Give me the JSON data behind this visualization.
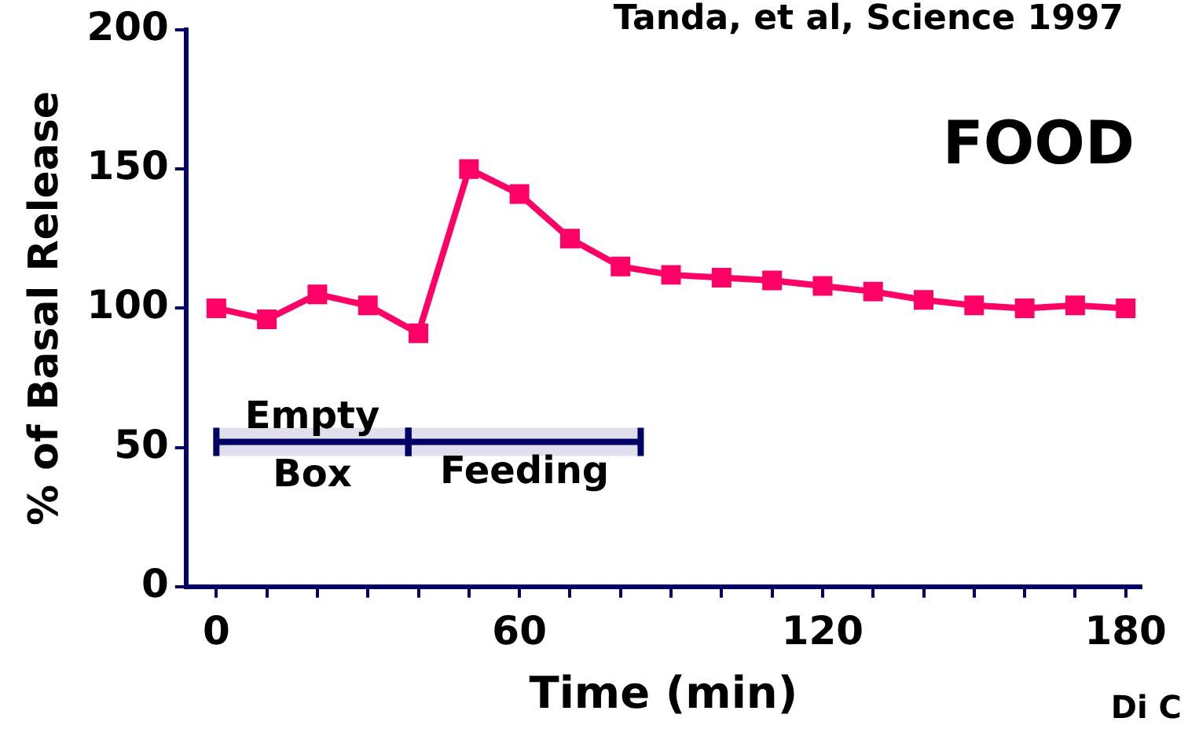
{
  "chart_data": {
    "type": "line",
    "xlabel": "Time (min)",
    "ylabel": "% of Basal Release",
    "x": [
      0,
      10,
      20,
      30,
      40,
      50,
      60,
      70,
      80,
      90,
      100,
      110,
      120,
      130,
      140,
      150,
      160,
      170,
      180
    ],
    "series": [
      {
        "color": "#ff0066",
        "values": [
          100,
          96,
          105,
          101,
          91,
          150,
          141,
          125,
          115,
          112,
          111,
          110,
          108,
          106,
          103,
          101,
          100,
          101,
          100
        ]
      }
    ],
    "xlim": [
      -6,
      183
    ],
    "xticks": [
      0,
      {
        "value": 10,
        "label": null
      },
      {
        "value": 20,
        "label": null
      },
      {
        "value": 30,
        "label": null
      },
      {
        "value": 40,
        "label": null
      },
      {
        "value": 50,
        "label": null
      },
      60,
      {
        "value": 70,
        "label": null
      },
      {
        "value": 80,
        "label": null
      },
      {
        "value": 90,
        "label": null
      },
      {
        "value": 100,
        "label": null
      },
      {
        "value": 110,
        "label": null
      },
      120,
      {
        "value": 130,
        "label": null
      },
      {
        "value": 140,
        "label": null
      },
      {
        "value": 150,
        "label": null
      },
      {
        "value": 160,
        "label": null
      },
      {
        "value": 170,
        "label": null
      },
      180
    ],
    "ylim": [
      0,
      200
    ],
    "yticks": [
      0,
      50,
      100,
      150,
      200
    ],
    "grid": false,
    "legend": false,
    "marker": "square",
    "line_style": "solid",
    "bands": [
      {
        "axis": "x",
        "from": 0,
        "to": 38,
        "label": "Empty Box",
        "color": "#000066"
      },
      {
        "axis": "x",
        "from": 38,
        "to": 84,
        "label": "Feeding",
        "color": "#000066"
      }
    ],
    "annotations": [
      "Tanda, et al, Science 1997",
      "FOOD",
      "Di C"
    ]
  }
}
